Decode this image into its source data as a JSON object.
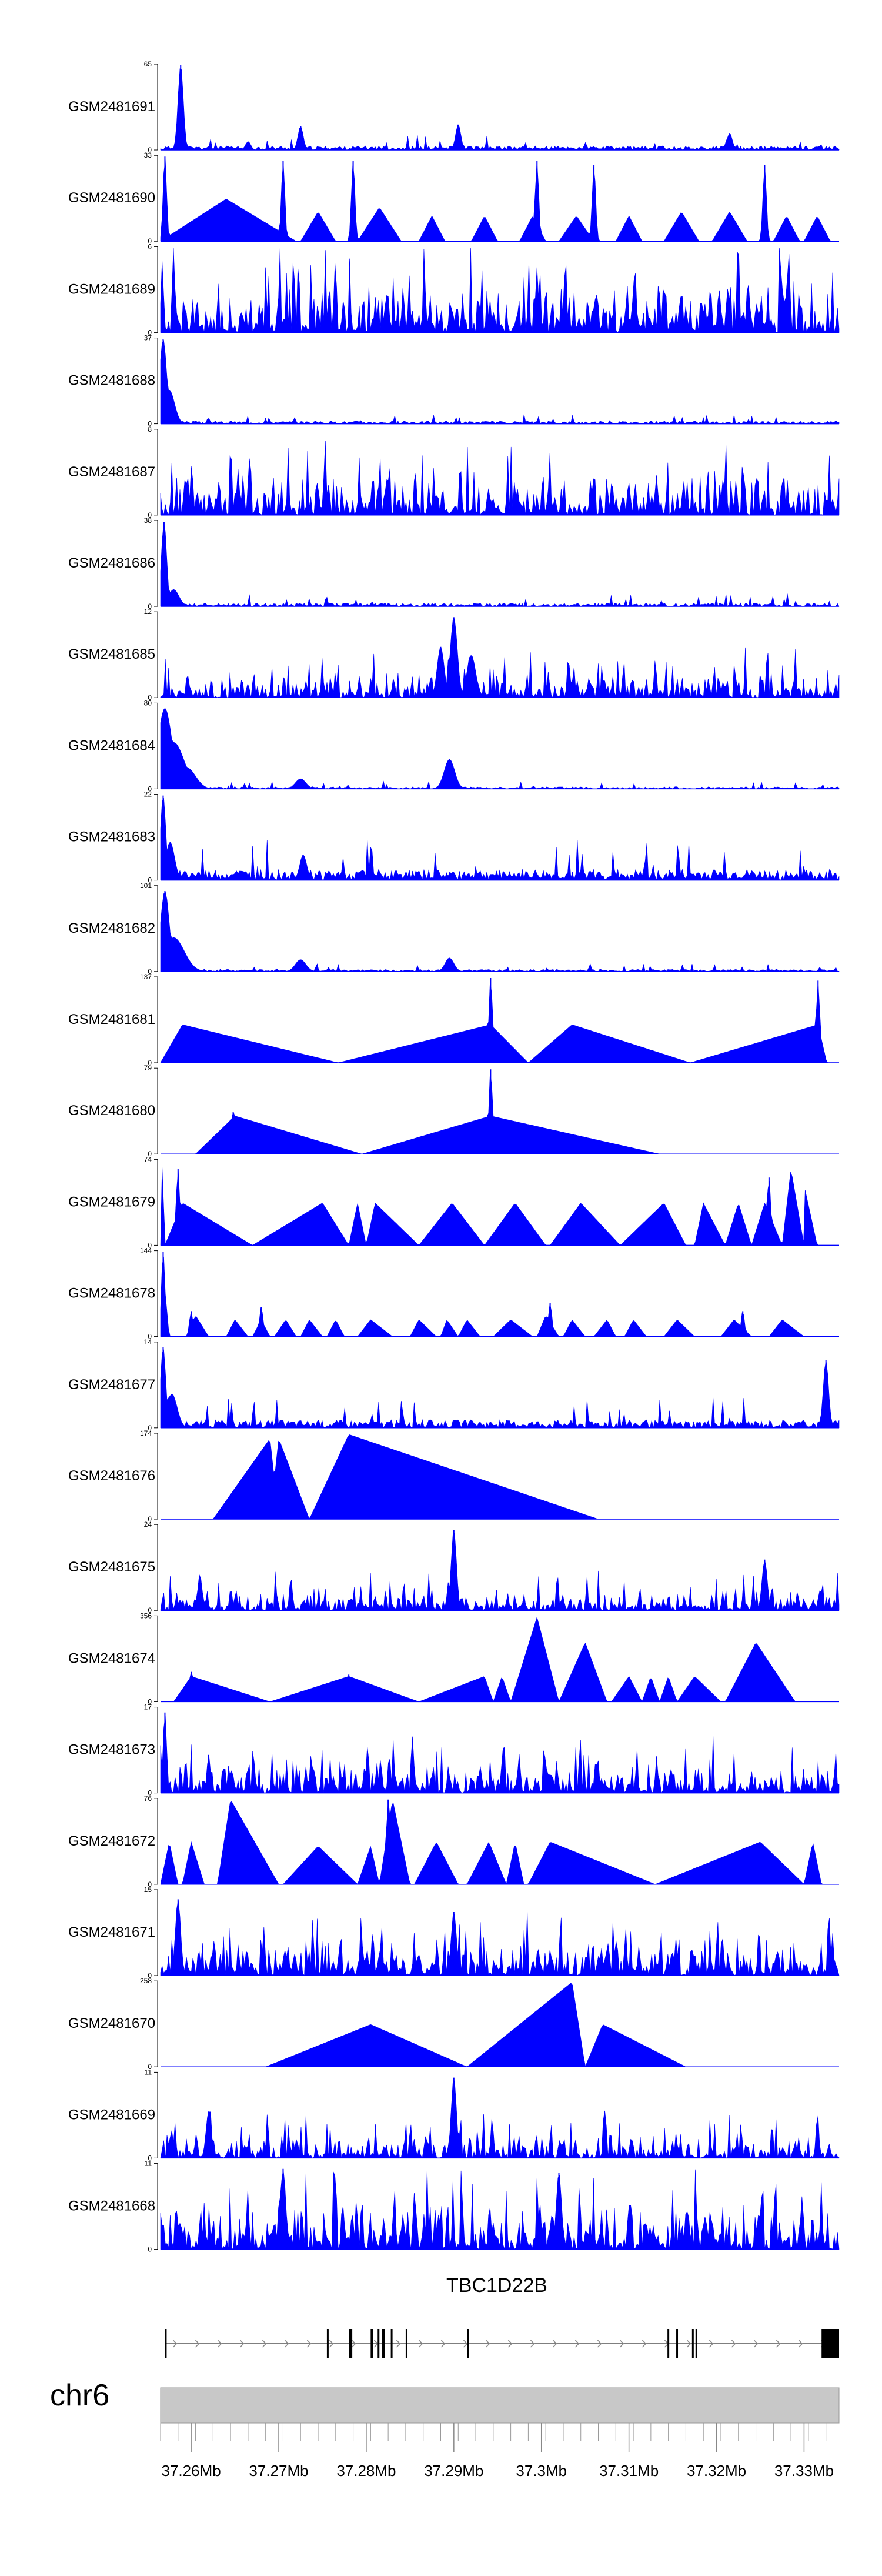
{
  "chart_data": {
    "type": "area",
    "fill_color": "#0000ff",
    "x_range_mb": [
      37.2565,
      37.334
    ],
    "tracks": [
      {
        "name": "GSM2481691",
        "ymax": "65",
        "profile": "spiky",
        "seed": 11,
        "base": 0.06,
        "peaks": [
          {
            "x": 37.2588,
            "h": 1.0,
            "w": 0.0003
          },
          {
            "x": 37.2725,
            "h": 0.28,
            "w": 0.0003
          },
          {
            "x": 37.2905,
            "h": 0.3,
            "w": 0.0003
          },
          {
            "x": 37.3215,
            "h": 0.2,
            "w": 0.0003
          },
          {
            "x": 37.2665,
            "h": 0.1,
            "w": 0.0003
          }
        ]
      },
      {
        "name": "GSM2481690",
        "ymax": "33",
        "profile": "triangles",
        "seed": 12,
        "base": 0.4,
        "tris": [
          [
            37.2565,
            37.264,
            37.272,
            0.5
          ],
          [
            37.2725,
            37.2745,
            37.2765,
            0.35
          ],
          [
            37.279,
            37.2815,
            37.284,
            0.4
          ],
          [
            37.286,
            37.2875,
            37.289,
            0.3
          ],
          [
            37.292,
            37.2935,
            37.295,
            0.3
          ],
          [
            37.2975,
            37.299,
            37.3005,
            0.3
          ],
          [
            37.302,
            37.304,
            37.306,
            0.3
          ],
          [
            37.3085,
            37.31,
            37.3115,
            0.3
          ],
          [
            37.314,
            37.316,
            37.318,
            0.35
          ],
          [
            37.3195,
            37.3215,
            37.3235,
            0.35
          ],
          [
            37.3265,
            37.328,
            37.3295,
            0.3
          ],
          [
            37.33,
            37.3315,
            37.333,
            0.3
          ]
        ],
        "peaks": [
          {
            "x": 37.257,
            "h": 1.0,
            "w": 0.0002
          },
          {
            "x": 37.2705,
            "h": 0.95,
            "w": 0.0002
          },
          {
            "x": 37.2785,
            "h": 0.95,
            "w": 0.0002
          },
          {
            "x": 37.2995,
            "h": 0.95,
            "w": 0.0002
          },
          {
            "x": 37.306,
            "h": 0.9,
            "w": 0.0002
          },
          {
            "x": 37.3255,
            "h": 0.9,
            "w": 0.0002
          }
        ]
      },
      {
        "name": "GSM2481689",
        "ymax": "6",
        "profile": "dense",
        "seed": 13,
        "base": 0.45,
        "peaks": []
      },
      {
        "name": "GSM2481688",
        "ymax": "37",
        "profile": "spiky",
        "seed": 14,
        "base": 0.04,
        "peaks": [
          {
            "x": 37.2568,
            "h": 1.0,
            "w": 0.0004
          },
          {
            "x": 37.2575,
            "h": 0.4,
            "w": 0.0006
          }
        ]
      },
      {
        "name": "GSM2481687",
        "ymax": "8",
        "profile": "dense",
        "seed": 15,
        "base": 0.35,
        "peaks": []
      },
      {
        "name": "GSM2481686",
        "ymax": "38",
        "profile": "spiky",
        "seed": 16,
        "base": 0.05,
        "peaks": [
          {
            "x": 37.2569,
            "h": 1.0,
            "w": 0.0003
          },
          {
            "x": 37.258,
            "h": 0.2,
            "w": 0.0006
          }
        ]
      },
      {
        "name": "GSM2481685",
        "ymax": "12",
        "profile": "dense",
        "seed": 17,
        "base": 0.2,
        "peaks": [
          {
            "x": 37.29,
            "h": 0.95,
            "w": 0.0004
          },
          {
            "x": 37.2885,
            "h": 0.6,
            "w": 0.0004
          },
          {
            "x": 37.292,
            "h": 0.5,
            "w": 0.0005
          }
        ]
      },
      {
        "name": "GSM2481684",
        "ymax": "80",
        "profile": "spiky",
        "seed": 18,
        "base": 0.03,
        "peaks": [
          {
            "x": 37.257,
            "h": 0.95,
            "w": 0.0008
          },
          {
            "x": 37.258,
            "h": 0.55,
            "w": 0.0012
          },
          {
            "x": 37.2595,
            "h": 0.25,
            "w": 0.001
          },
          {
            "x": 37.2725,
            "h": 0.12,
            "w": 0.0006
          },
          {
            "x": 37.2895,
            "h": 0.35,
            "w": 0.0006
          }
        ]
      },
      {
        "name": "GSM2481683",
        "ymax": "22",
        "profile": "spiky",
        "seed": 19,
        "base": 0.16,
        "peaks": [
          {
            "x": 37.2568,
            "h": 1.0,
            "w": 0.0003
          },
          {
            "x": 37.2576,
            "h": 0.45,
            "w": 0.0005
          },
          {
            "x": 37.2728,
            "h": 0.3,
            "w": 0.0004
          }
        ]
      },
      {
        "name": "GSM2481682",
        "ymax": "101",
        "profile": "spiky",
        "seed": 20,
        "base": 0.03,
        "peaks": [
          {
            "x": 37.257,
            "h": 0.95,
            "w": 0.0005
          },
          {
            "x": 37.258,
            "h": 0.4,
            "w": 0.0012
          },
          {
            "x": 37.2725,
            "h": 0.14,
            "w": 0.0006
          },
          {
            "x": 37.2895,
            "h": 0.16,
            "w": 0.0005
          }
        ]
      },
      {
        "name": "GSM2481681",
        "ymax": "137",
        "profile": "triangles",
        "seed": 21,
        "base": 0,
        "tris": [
          [
            37.2565,
            37.259,
            37.2768,
            0.45
          ],
          [
            37.2768,
            37.2942,
            37.2985,
            0.45
          ],
          [
            37.2985,
            37.3035,
            37.317,
            0.45
          ],
          [
            37.317,
            37.3316,
            37.3326,
            0.45
          ]
        ],
        "peaks": [
          {
            "x": 37.2942,
            "h": 1.0,
            "w": 0.0002
          },
          {
            "x": 37.3316,
            "h": 0.97,
            "w": 0.0002
          }
        ]
      },
      {
        "name": "GSM2481680",
        "ymax": "79",
        "profile": "triangles",
        "seed": 22,
        "base": 0,
        "tris": [
          [
            37.2605,
            37.265,
            37.2795,
            0.45
          ],
          [
            37.2795,
            37.2942,
            37.3135,
            0.45
          ]
        ],
        "peaks": [
          {
            "x": 37.2942,
            "h": 1.0,
            "w": 0.0002
          },
          {
            "x": 37.2648,
            "h": 0.5,
            "w": 0.0002
          }
        ]
      },
      {
        "name": "GSM2481679",
        "ymax": "74",
        "profile": "triangles",
        "seed": 23,
        "base": 0,
        "tris": [
          [
            37.2565,
            37.2567,
            37.257,
            1.0
          ],
          [
            37.257,
            37.259,
            37.267,
            0.5
          ],
          [
            37.267,
            37.275,
            37.278,
            0.5
          ],
          [
            37.278,
            37.279,
            37.28,
            0.5
          ],
          [
            37.28,
            37.281,
            37.286,
            0.5
          ],
          [
            37.286,
            37.2898,
            37.2935,
            0.5
          ],
          [
            37.2935,
            37.297,
            37.3005,
            0.5
          ],
          [
            37.301,
            37.3045,
            37.309,
            0.5
          ],
          [
            37.309,
            37.314,
            37.3165,
            0.5
          ],
          [
            37.3175,
            37.3185,
            37.321,
            0.5
          ],
          [
            37.321,
            37.3225,
            37.324,
            0.5
          ],
          [
            37.324,
            37.3255,
            37.3275,
            0.5
          ],
          [
            37.3275,
            37.3285,
            37.33,
            0.9
          ],
          [
            37.33,
            37.3295,
            37.3315,
            0.95
          ]
        ],
        "peaks": [
          {
            "x": 37.2585,
            "h": 0.9,
            "w": 0.0002
          },
          {
            "x": 37.326,
            "h": 0.8,
            "w": 0.0002
          }
        ]
      },
      {
        "name": "GSM2481678",
        "ymax": "144",
        "profile": "triangles",
        "seed": 24,
        "base": 0,
        "tris": [
          [
            37.2565,
            37.2567,
            37.2575,
            0.9
          ],
          [
            37.2595,
            37.2605,
            37.262,
            0.25
          ],
          [
            37.264,
            37.265,
            37.2665,
            0.2
          ],
          [
            37.267,
            37.268,
            37.269,
            0.2
          ],
          [
            37.2695,
            37.2708,
            37.272,
            0.2
          ],
          [
            37.2725,
            37.2735,
            37.275,
            0.2
          ],
          [
            37.2755,
            37.2765,
            37.2775,
            0.2
          ],
          [
            37.279,
            37.2805,
            37.283,
            0.2
          ],
          [
            37.285,
            37.286,
            37.288,
            0.2
          ],
          [
            37.2885,
            37.2892,
            37.2905,
            0.2
          ],
          [
            37.2905,
            37.2915,
            37.293,
            0.2
          ],
          [
            37.2945,
            37.2965,
            37.299,
            0.2
          ],
          [
            37.2995,
            37.3005,
            37.302,
            0.25
          ],
          [
            37.3025,
            37.3035,
            37.305,
            0.2
          ],
          [
            37.306,
            37.3075,
            37.3085,
            0.2
          ],
          [
            37.3095,
            37.3105,
            37.312,
            0.2
          ],
          [
            37.314,
            37.3155,
            37.3175,
            0.2
          ],
          [
            37.3205,
            37.322,
            37.324,
            0.2
          ],
          [
            37.326,
            37.3275,
            37.33,
            0.2
          ]
        ],
        "peaks": [
          {
            "x": 37.2568,
            "h": 1.0,
            "w": 0.0002
          },
          {
            "x": 37.26,
            "h": 0.3,
            "w": 0.0002
          },
          {
            "x": 37.268,
            "h": 0.35,
            "w": 0.0002
          },
          {
            "x": 37.301,
            "h": 0.4,
            "w": 0.0002
          },
          {
            "x": 37.323,
            "h": 0.3,
            "w": 0.0002
          }
        ]
      },
      {
        "name": "GSM2481677",
        "ymax": "14",
        "profile": "spiky",
        "seed": 25,
        "base": 0.12,
        "peaks": [
          {
            "x": 37.2568,
            "h": 0.95,
            "w": 0.0003
          },
          {
            "x": 37.2578,
            "h": 0.4,
            "w": 0.0006
          },
          {
            "x": 37.3325,
            "h": 0.8,
            "w": 0.0003
          }
        ]
      },
      {
        "name": "GSM2481676",
        "ymax": "174",
        "profile": "triangles",
        "seed": 26,
        "base": 0,
        "tris": [
          [
            37.2625,
            37.269,
            37.27,
            0.95
          ],
          [
            37.269,
            37.27,
            37.2735,
            0.95
          ],
          [
            37.2735,
            37.278,
            37.3065,
            1.0
          ]
        ],
        "peaks": []
      },
      {
        "name": "GSM2481675",
        "ymax": "24",
        "profile": "dense",
        "seed": 27,
        "base": 0.15,
        "peaks": [
          {
            "x": 37.29,
            "h": 0.95,
            "w": 0.0003
          },
          {
            "x": 37.261,
            "h": 0.35,
            "w": 0.0003
          },
          {
            "x": 37.3255,
            "h": 0.6,
            "w": 0.0003
          }
        ]
      },
      {
        "name": "GSM2481674",
        "ymax": "356",
        "profile": "triangles",
        "seed": 27,
        "base": 0,
        "tris": [
          [
            37.258,
            37.26,
            37.269,
            0.3
          ],
          [
            37.269,
            37.278,
            37.286,
            0.3
          ],
          [
            37.286,
            37.2935,
            37.2945,
            0.3
          ],
          [
            37.2945,
            37.2955,
            37.2965,
            0.3
          ],
          [
            37.2965,
            37.2995,
            37.302,
            1.0
          ],
          [
            37.302,
            37.305,
            37.3075,
            0.7
          ],
          [
            37.308,
            37.31,
            37.3115,
            0.3
          ],
          [
            37.3115,
            37.3125,
            37.3135,
            0.3
          ],
          [
            37.3135,
            37.3145,
            37.3155,
            0.3
          ],
          [
            37.3155,
            37.3175,
            37.3205,
            0.3
          ],
          [
            37.321,
            37.3245,
            37.329,
            0.7
          ]
        ],
        "peaks": [
          {
            "x": 37.26,
            "h": 0.35,
            "w": 0.0002
          },
          {
            "x": 37.278,
            "h": 0.32,
            "w": 0.0002
          }
        ]
      },
      {
        "name": "GSM2481673",
        "ymax": "17",
        "profile": "dense",
        "seed": 28,
        "base": 0.25,
        "peaks": [
          {
            "x": 37.257,
            "h": 0.95,
            "w": 0.0002
          },
          {
            "x": 37.262,
            "h": 0.45,
            "w": 0.0002
          }
        ]
      },
      {
        "name": "GSM2481672",
        "ymax": "76",
        "profile": "triangles",
        "seed": 29,
        "base": 0,
        "tris": [
          [
            37.2565,
            37.2575,
            37.2585,
            0.5
          ],
          [
            37.259,
            37.26,
            37.2615,
            0.5
          ],
          [
            37.263,
            37.2645,
            37.27,
            1.0
          ],
          [
            37.2705,
            37.2745,
            37.279,
            0.45
          ],
          [
            37.279,
            37.2805,
            37.2815,
            0.45
          ],
          [
            37.2815,
            37.283,
            37.285,
            1.0
          ],
          [
            37.2855,
            37.288,
            37.2905,
            0.5
          ],
          [
            37.2915,
            37.294,
            37.296,
            0.5
          ],
          [
            37.296,
            37.297,
            37.298,
            0.5
          ],
          [
            37.2985,
            37.301,
            37.313,
            0.5
          ],
          [
            37.313,
            37.325,
            37.33,
            0.5
          ],
          [
            37.33,
            37.331,
            37.332,
            0.5
          ]
        ],
        "peaks": [
          {
            "x": 37.2825,
            "h": 1.0,
            "w": 0.0002
          }
        ]
      },
      {
        "name": "GSM2481671",
        "ymax": "15",
        "profile": "dense",
        "seed": 30,
        "base": 0.3,
        "peaks": [
          {
            "x": 37.2585,
            "h": 0.9,
            "w": 0.0003
          },
          {
            "x": 37.29,
            "h": 0.75,
            "w": 0.0003
          }
        ]
      },
      {
        "name": "GSM2481670",
        "ymax": "258",
        "profile": "triangles",
        "seed": 31,
        "base": 0,
        "tris": [
          [
            37.2685,
            37.2805,
            37.2915,
            0.5
          ],
          [
            37.2915,
            37.3035,
            37.305,
            1.0
          ],
          [
            37.305,
            37.307,
            37.3165,
            0.5
          ]
        ],
        "peaks": []
      },
      {
        "name": "GSM2481669",
        "ymax": "11",
        "profile": "dense",
        "seed": 32,
        "base": 0.2,
        "peaks": [
          {
            "x": 37.29,
            "h": 0.95,
            "w": 0.0003
          },
          {
            "x": 37.262,
            "h": 0.55,
            "w": 0.0003
          }
        ]
      },
      {
        "name": "GSM2481668",
        "ymax": "11",
        "profile": "dense",
        "seed": 33,
        "base": 0.4,
        "peaks": [
          {
            "x": 37.2705,
            "h": 0.95,
            "w": 0.0003
          },
          {
            "x": 37.302,
            "h": 0.9,
            "w": 0.0003
          }
        ]
      }
    ],
    "gene": {
      "name": "TBC1D22B",
      "start_mb": 37.257,
      "end_mb": 37.334,
      "strand": "+",
      "exons": [
        [
          37.257,
          37.2572
        ],
        [
          37.2755,
          37.2757
        ],
        [
          37.278,
          37.2784
        ],
        [
          37.2805,
          37.2808
        ],
        [
          37.2813,
          37.2815
        ],
        [
          37.2818,
          37.2821
        ],
        [
          37.2828,
          37.283
        ],
        [
          37.2845,
          37.2847
        ],
        [
          37.2915,
          37.2917
        ],
        [
          37.3144,
          37.3146
        ],
        [
          37.3154,
          37.3156
        ],
        [
          37.3172,
          37.3174
        ],
        [
          37.3176,
          37.3178
        ],
        [
          37.332,
          37.3322
        ],
        [
          37.3323,
          37.334
        ]
      ],
      "utr_blocks": [
        [
          37.3321,
          37.334
        ]
      ]
    },
    "chromosome": "chr6",
    "xticks": [
      "37.26Mb",
      "37.27Mb",
      "37.28Mb",
      "37.29Mb",
      "37.3Mb",
      "37.31Mb",
      "37.32Mb",
      "37.33Mb"
    ],
    "xtick_values": [
      37.26,
      37.27,
      37.28,
      37.29,
      37.3,
      37.31,
      37.32,
      37.33
    ],
    "minor_tick_step": 0.002
  }
}
